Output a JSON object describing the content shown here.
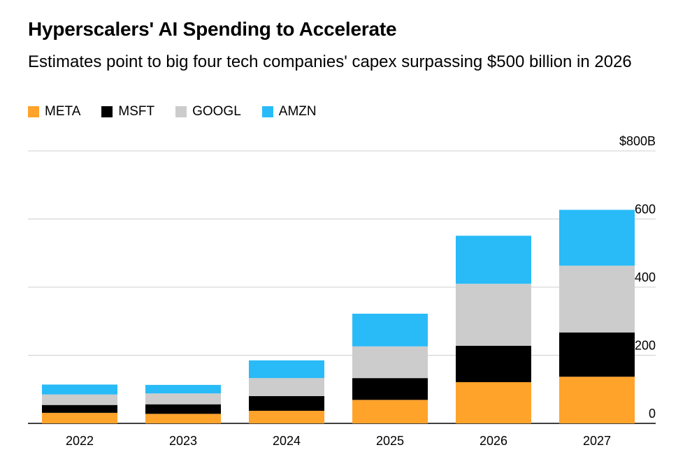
{
  "title": "Hyperscalers' AI Spending to Accelerate",
  "subtitle": "Estimates point to big four tech companies' capex surpassing $500 billion in 2026",
  "chart_data": {
    "type": "bar",
    "stacked": true,
    "categories": [
      "2022",
      "2023",
      "2024",
      "2025",
      "2026",
      "2027"
    ],
    "series": [
      {
        "name": "META",
        "color": "#FFA32B",
        "values": [
          31,
          28,
          37,
          69,
          121,
          137
        ]
      },
      {
        "name": "MSFT",
        "color": "#000000",
        "values": [
          23,
          28,
          43,
          64,
          107,
          130
        ]
      },
      {
        "name": "GOOGL",
        "color": "#CCCCCC",
        "values": [
          31,
          32,
          53,
          93,
          182,
          196
        ]
      },
      {
        "name": "AMZN",
        "color": "#29BBF8",
        "values": [
          29,
          25,
          52,
          96,
          141,
          164
        ]
      }
    ],
    "ylim": [
      0,
      800
    ],
    "yticks": [
      0,
      200,
      400,
      600,
      800
    ],
    "ytick_labels": [
      "0",
      "200",
      "400",
      "600",
      "$800B"
    ],
    "grid": true,
    "legend_position": "top-left"
  }
}
